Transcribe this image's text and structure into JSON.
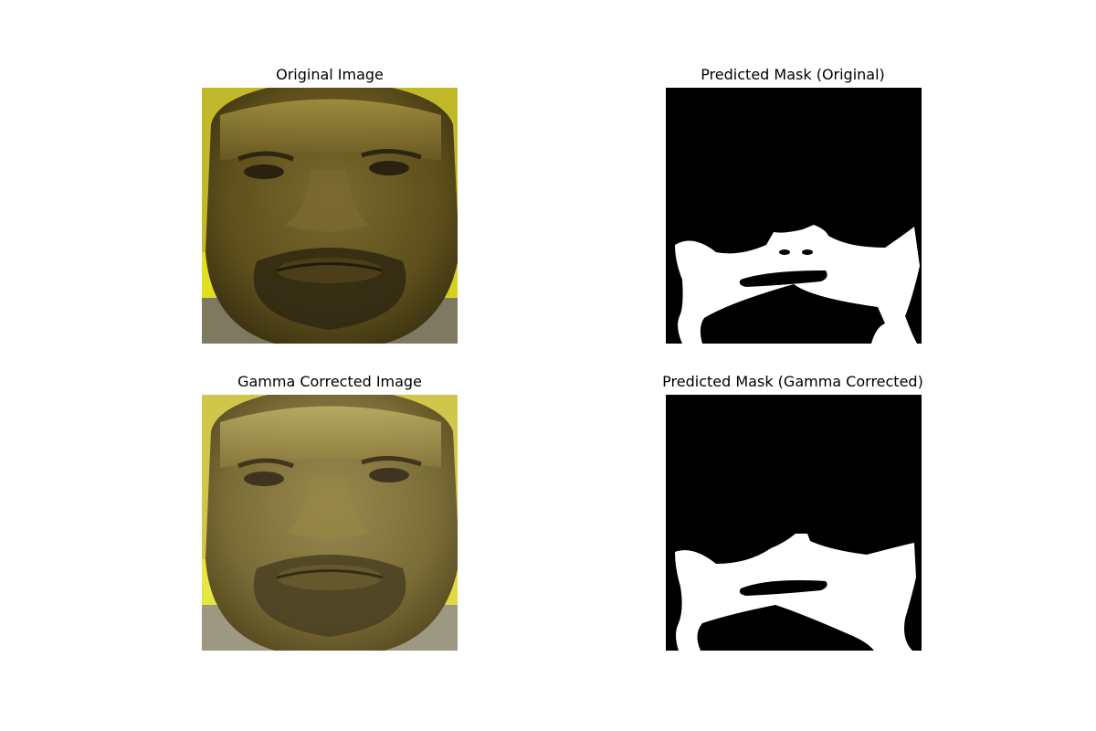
{
  "panels": [
    {
      "title": "Original Image"
    },
    {
      "title": "Predicted Mask (Original)"
    },
    {
      "title": "Gamma Corrected Image"
    },
    {
      "title": "Predicted Mask (Gamma Corrected)"
    }
  ],
  "colors": {
    "background": "#ffffff",
    "mask_background": "#000000",
    "mask_foreground": "#ffffff",
    "photo_wall_yellow": "#c9c01e",
    "photo_skin": "#6b5a24",
    "gamma_skin": "#8a7a3e"
  }
}
